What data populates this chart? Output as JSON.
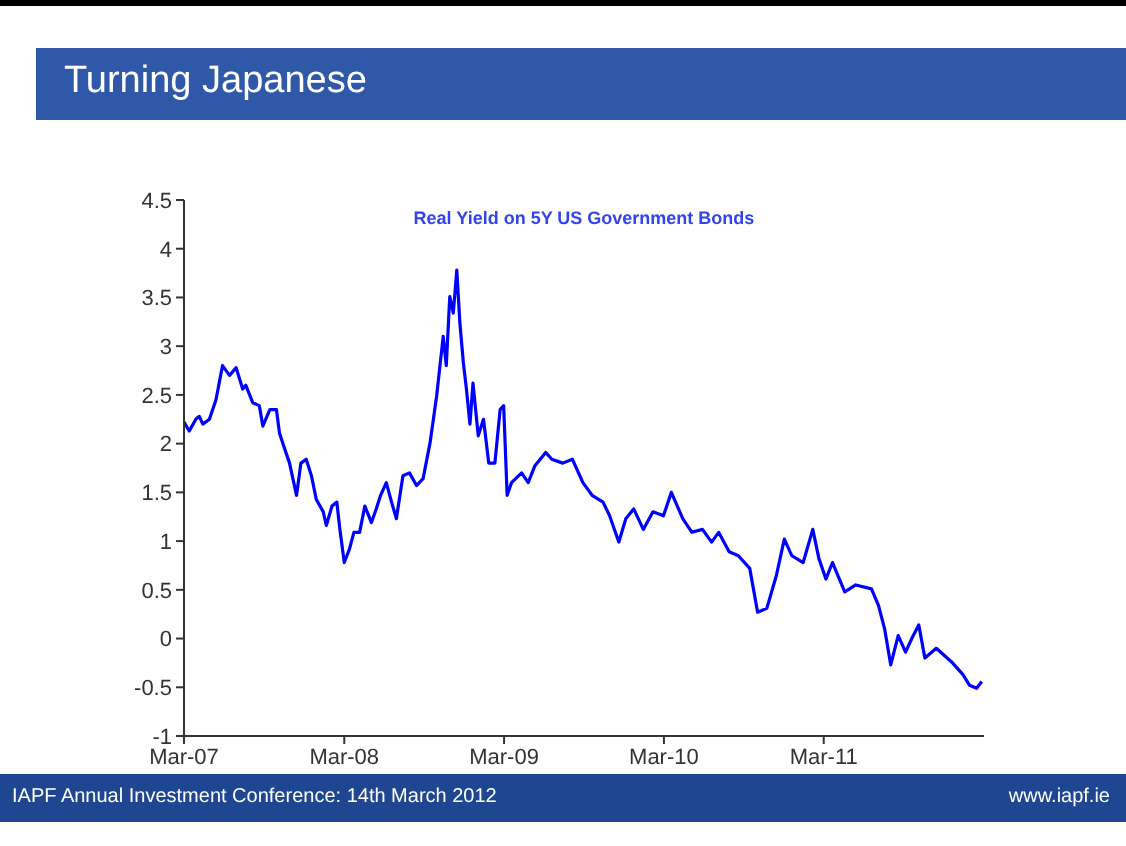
{
  "chart_data": {
    "type": "line",
    "title": "Turning Japanese",
    "subtitle": "Real Yield on 5Y US Government Bonds",
    "annotations": [
      "IAPF Annual Investment Conference: 14th March 2012",
      "www.iapf.ie"
    ],
    "x": [
      "2007-03-01",
      "2007-03-13",
      "2007-03-28",
      "2007-04-05",
      "2007-04-13",
      "2007-04-28",
      "2007-05-13",
      "2007-05-28",
      "2007-06-13",
      "2007-06-28",
      "2007-07-13",
      "2007-07-20",
      "2007-08-05",
      "2007-08-20",
      "2007-08-28",
      "2007-09-13",
      "2007-09-28",
      "2007-10-05",
      "2007-10-13",
      "2007-10-28",
      "2007-11-13",
      "2007-11-23",
      "2007-12-05",
      "2007-12-17",
      "2007-12-28",
      "2008-01-13",
      "2008-01-20",
      "2008-02-02",
      "2008-02-13",
      "2008-02-20",
      "2008-03-01",
      "2008-03-13",
      "2008-03-23",
      "2008-04-05",
      "2008-04-17",
      "2008-05-02",
      "2008-05-13",
      "2008-05-23",
      "2008-06-05",
      "2008-06-17",
      "2008-06-28",
      "2008-07-13",
      "2008-07-28",
      "2008-08-13",
      "2008-08-28",
      "2008-09-13",
      "2008-09-28",
      "2008-10-13",
      "2008-10-20",
      "2008-10-28",
      "2008-11-05",
      "2008-11-13",
      "2008-11-20",
      "2008-11-28",
      "2008-12-05",
      "2008-12-13",
      "2008-12-20",
      "2009-01-01",
      "2009-01-13",
      "2009-01-25",
      "2009-02-08",
      "2009-02-20",
      "2009-02-28",
      "2009-03-08",
      "2009-03-18",
      "2009-04-10",
      "2009-04-25",
      "2009-05-10",
      "2009-06-04",
      "2009-06-18",
      "2009-07-13",
      "2009-08-04",
      "2009-08-28",
      "2009-09-18",
      "2009-10-13",
      "2009-10-28",
      "2009-11-18",
      "2009-12-04",
      "2009-12-22",
      "2010-01-13",
      "2010-02-04",
      "2010-02-28",
      "2010-03-18",
      "2010-04-13",
      "2010-05-04",
      "2010-05-28",
      "2010-06-18",
      "2010-07-04",
      "2010-07-28",
      "2010-08-18",
      "2010-09-13",
      "2010-10-01",
      "2010-10-22",
      "2010-11-13",
      "2010-12-01",
      "2010-12-18",
      "2011-01-13",
      "2011-02-04",
      "2011-02-18",
      "2011-03-06",
      "2011-03-21",
      "2011-04-18",
      "2011-05-13",
      "2011-06-18",
      "2011-07-04",
      "2011-07-18",
      "2011-08-01",
      "2011-08-18",
      "2011-09-04",
      "2011-09-18",
      "2011-10-04",
      "2011-10-18",
      "2011-11-13",
      "2011-12-18",
      "2012-01-13",
      "2012-01-28",
      "2012-02-13",
      "2012-02-25"
    ],
    "values": [
      2.22,
      2.13,
      2.25,
      2.28,
      2.2,
      2.25,
      2.45,
      2.8,
      2.7,
      2.78,
      2.56,
      2.6,
      2.42,
      2.39,
      2.18,
      2.35,
      2.35,
      2.11,
      2.0,
      1.8,
      1.47,
      1.8,
      1.84,
      1.67,
      1.43,
      1.3,
      1.16,
      1.36,
      1.4,
      1.12,
      0.78,
      0.92,
      1.09,
      1.09,
      1.36,
      1.19,
      1.33,
      1.47,
      1.6,
      1.4,
      1.23,
      1.67,
      1.7,
      1.57,
      1.64,
      2.01,
      2.49,
      3.1,
      2.8,
      3.51,
      3.34,
      3.78,
      3.24,
      2.83,
      2.56,
      2.2,
      2.62,
      2.08,
      2.25,
      1.8,
      1.8,
      2.35,
      2.39,
      1.47,
      1.6,
      1.7,
      1.6,
      1.77,
      1.91,
      1.84,
      1.8,
      1.84,
      1.6,
      1.47,
      1.4,
      1.26,
      0.99,
      1.23,
      1.33,
      1.12,
      1.3,
      1.26,
      1.5,
      1.23,
      1.09,
      1.12,
      0.99,
      1.09,
      0.89,
      0.85,
      0.72,
      0.27,
      0.31,
      0.65,
      1.02,
      0.85,
      0.78,
      1.12,
      0.82,
      0.61,
      0.78,
      0.48,
      0.55,
      0.51,
      0.34,
      0.1,
      -0.27,
      0.03,
      -0.14,
      0,
      0.14,
      -0.2,
      -0.1,
      -0.24,
      -0.37,
      -0.48,
      -0.51,
      -0.44
    ],
    "color": "#0000ff",
    "xlim": [
      "2007-03-01",
      "2012-03-01"
    ],
    "xticks": [
      {
        "value": "2007-03-01",
        "label": "Mar-07"
      },
      {
        "value": "2008-03-01",
        "label": "Mar-08"
      },
      {
        "value": "2009-03-01",
        "label": "Mar-09"
      },
      {
        "value": "2010-03-01",
        "label": "Mar-10"
      },
      {
        "value": "2011-03-01",
        "label": "Mar-11"
      }
    ],
    "ylim": [
      -1,
      4.5
    ],
    "yticks": [
      -1,
      -0.5,
      0,
      0.5,
      1,
      1.5,
      2,
      2.5,
      3,
      3.5,
      4,
      4.5
    ],
    "grid": false,
    "legend": false,
    "marker": "none",
    "line_style": "solid"
  }
}
